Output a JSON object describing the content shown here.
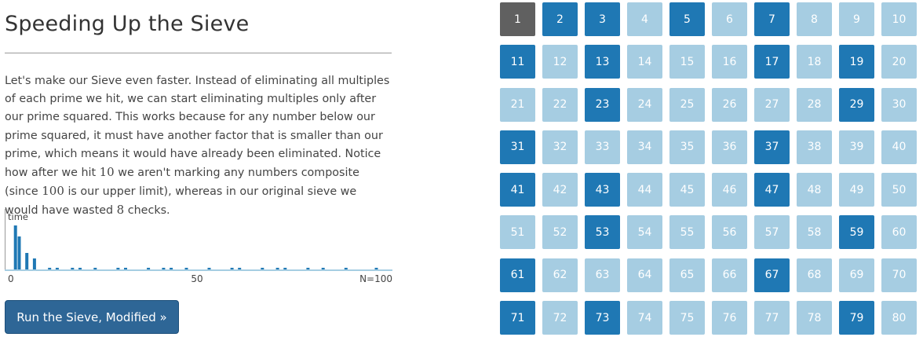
{
  "title": "Speeding Up the Sieve",
  "paragraph": {
    "part1": "Let's make our Sieve even faster. Instead of eliminating all multiples of each prime we hit, we can start eliminating multiples only after our prime squared. This works because for any number below our prime squared, it must have another factor that is smaller than our prime, which means it would have already been eliminated. Notice how after we hit ",
    "num1": "10",
    "part2": " we aren't marking any numbers composite (since ",
    "num2": "100",
    "part3": " is our upper limit), whereas in our original sieve we would have wasted ",
    "num3": "8",
    "part4": " checks."
  },
  "chart_data": {
    "type": "bar",
    "ylabel": "time",
    "xlim": [
      0,
      100
    ],
    "x_ticks": [
      "0",
      "50",
      "N=100"
    ],
    "x": [
      2,
      3,
      5,
      7,
      11,
      13,
      17,
      19,
      23,
      29,
      31,
      37,
      41,
      43,
      47,
      53,
      59,
      61,
      67,
      71,
      73,
      79,
      83,
      89,
      97
    ],
    "values": [
      8,
      6,
      3,
      2,
      0.3,
      0.3,
      0.3,
      0.3,
      0.3,
      0.3,
      0.3,
      0.3,
      0.3,
      0.3,
      0.3,
      0.3,
      0.3,
      0.3,
      0.3,
      0.3,
      0.3,
      0.3,
      0.3,
      0.3,
      0.3
    ],
    "ylim": [
      0,
      10
    ],
    "bar_color": "#1f78b4",
    "baseline_color": "#a6cde2"
  },
  "button": {
    "label": "Run the Sieve, Modified »"
  },
  "grid": {
    "max": 80,
    "columns": 10,
    "primes": [
      2,
      3,
      5,
      7,
      11,
      13,
      17,
      19,
      23,
      29,
      31,
      37,
      41,
      43,
      47,
      53,
      59,
      61,
      67,
      71,
      73,
      79
    ],
    "special": [
      1
    ],
    "colors": {
      "prime": "#1f78b4",
      "composite": "#a6cde2",
      "one": "#606060"
    }
  }
}
